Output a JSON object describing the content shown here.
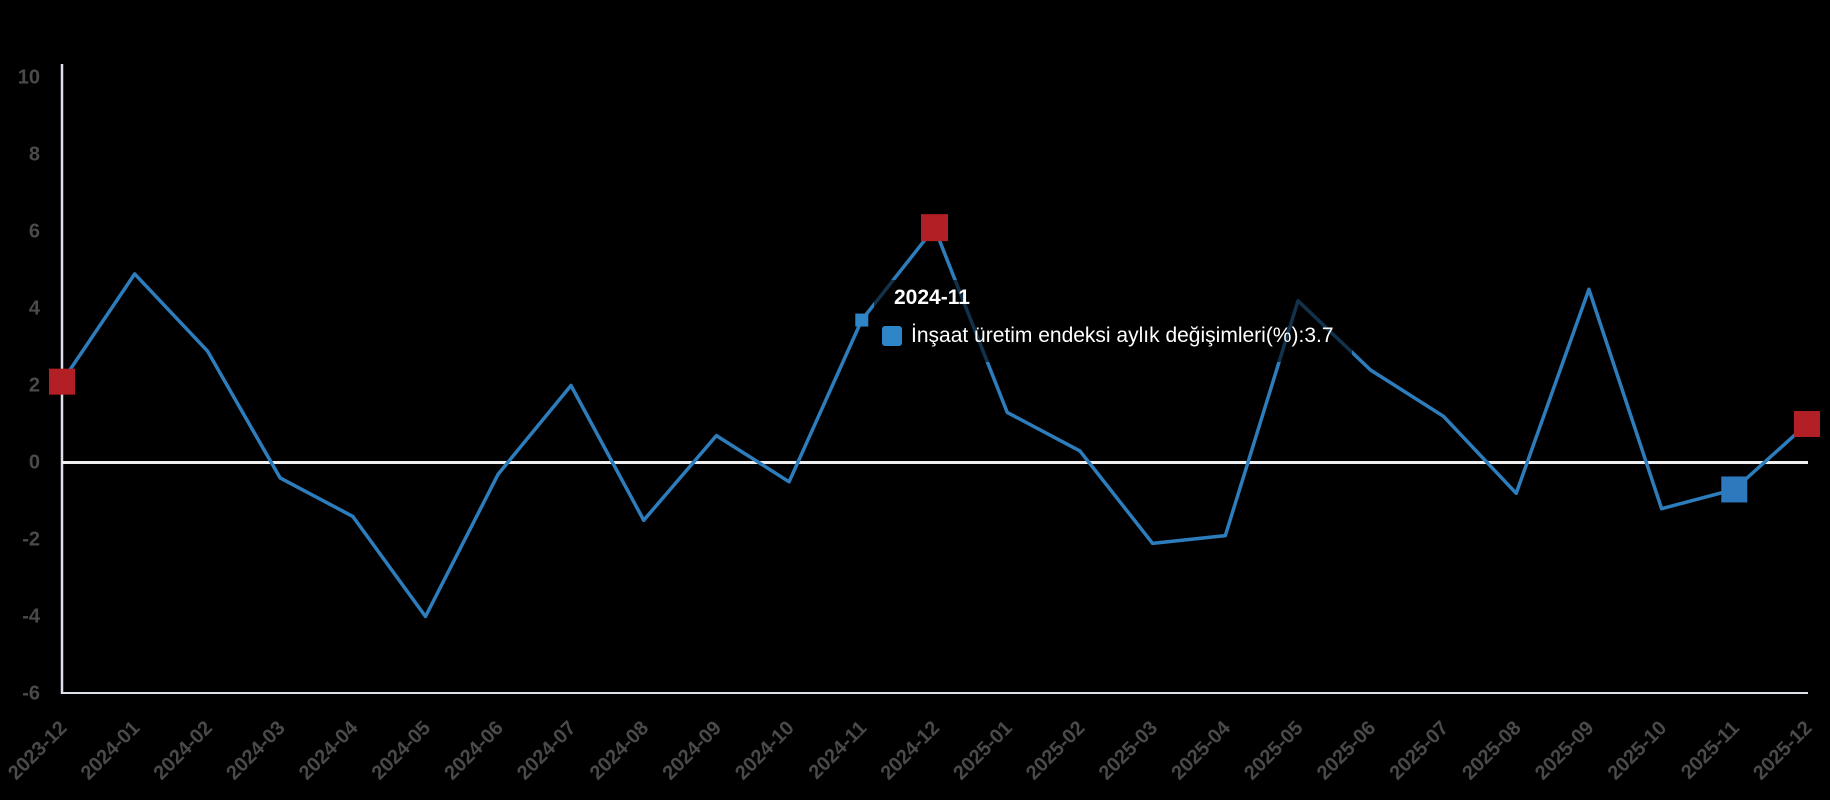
{
  "chart_data": {
    "type": "line",
    "title": "",
    "xlabel": "",
    "ylabel": "",
    "categories": [
      "2023-12",
      "2024-01",
      "2024-02",
      "2024-03",
      "2024-04",
      "2024-05",
      "2024-06",
      "2024-07",
      "2024-08",
      "2024-09",
      "2024-10",
      "2024-11",
      "2024-12",
      "2025-01",
      "2025-02",
      "2025-03",
      "2025-04",
      "2025-05",
      "2025-06",
      "2025-07",
      "2025-08",
      "2025-09",
      "2025-10",
      "2025-11",
      "2025-12"
    ],
    "series": [
      {
        "name": "İnşaat üretim endeksi aylık değişimleri(%)",
        "values": [
          2.1,
          4.9,
          2.9,
          -0.4,
          -1.4,
          -4.0,
          -0.3,
          2.0,
          -1.5,
          0.7,
          -0.5,
          3.7,
          6.1,
          1.3,
          0.3,
          -2.1,
          -1.9,
          4.2,
          2.4,
          1.2,
          -0.8,
          4.5,
          -1.2,
          -0.7,
          1.0
        ]
      }
    ],
    "ylim": [
      -6,
      10
    ],
    "yticks": [
      10,
      8,
      6,
      4,
      2,
      0,
      -2,
      -4,
      -6
    ],
    "grid": false,
    "legend_position": "none",
    "zero_line": true,
    "markers": [
      {
        "x": "2023-12",
        "color_key": "marker_red",
        "size": 26
      },
      {
        "x": "2024-11",
        "color_key": "hover_dot_blue",
        "size": 13
      },
      {
        "x": "2024-12",
        "color_key": "marker_red",
        "size": 27
      },
      {
        "x": "2025-11",
        "color_key": "marker_blue",
        "size": 26
      },
      {
        "x": "2025-12",
        "color_key": "marker_red",
        "size": 26
      }
    ]
  },
  "tooltip": {
    "title": "2024-11",
    "series_label": "İnşaat üretim endeksi aylık değişimleri(%)",
    "separator": ": ",
    "value": "3.7"
  },
  "colors": {
    "background": "#000000",
    "line": "#2d7dbd",
    "marker_red": "#b21f24",
    "marker_blue": "#2e79bd",
    "hover_dot_blue": "#2e86c8",
    "axis_line": "#dde2ea",
    "zero_line": "#efefef",
    "tick_label": "#4a4a4a",
    "tooltip_text": "#ffffff"
  }
}
